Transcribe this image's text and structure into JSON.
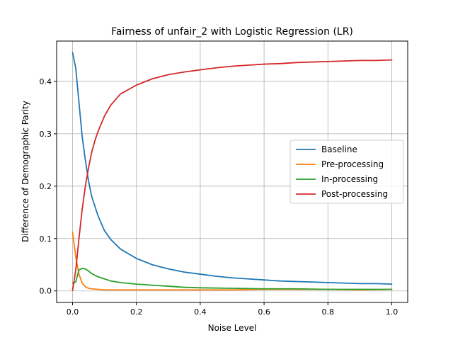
{
  "chart_data": {
    "type": "line",
    "title": "Fairness of unfair_2 with Logistic Regression (LR)",
    "xlabel": "Noise Level",
    "ylabel": "Difference of Demographic Parity",
    "xlim": [
      -0.05,
      1.05
    ],
    "ylim": [
      -0.022,
      0.477
    ],
    "xticks": [
      0.0,
      0.2,
      0.4,
      0.6,
      0.8,
      1.0
    ],
    "xtick_labels": [
      "0.0",
      "0.2",
      "0.4",
      "0.6",
      "0.8",
      "1.0"
    ],
    "yticks": [
      0.0,
      0.1,
      0.2,
      0.3,
      0.4
    ],
    "ytick_labels": [
      "0.0",
      "0.1",
      "0.2",
      "0.3",
      "0.4"
    ],
    "grid": true,
    "legend_position": "center-right",
    "series": [
      {
        "name": "Baseline",
        "color": "#1f77b4",
        "x": [
          0,
          0.01,
          0.02,
          0.03,
          0.04,
          0.05,
          0.06,
          0.08,
          0.1,
          0.12,
          0.15,
          0.2,
          0.25,
          0.3,
          0.35,
          0.4,
          0.45,
          0.5,
          0.55,
          0.6,
          0.65,
          0.7,
          0.75,
          0.8,
          0.85,
          0.9,
          0.95,
          1.0
        ],
        "y": [
          0.455,
          0.425,
          0.36,
          0.295,
          0.25,
          0.21,
          0.18,
          0.143,
          0.115,
          0.098,
          0.08,
          0.062,
          0.05,
          0.042,
          0.036,
          0.032,
          0.028,
          0.025,
          0.023,
          0.021,
          0.019,
          0.018,
          0.017,
          0.016,
          0.015,
          0.014,
          0.014,
          0.013
        ]
      },
      {
        "name": "Pre-processing",
        "color": "#ff7f0e",
        "x": [
          0,
          0.01,
          0.02,
          0.03,
          0.04,
          0.05,
          0.06,
          0.08,
          0.1,
          0.15,
          0.2,
          0.3,
          0.4,
          0.5,
          0.6,
          0.7,
          0.8,
          0.9,
          1.0
        ],
        "y": [
          0.112,
          0.065,
          0.032,
          0.015,
          0.008,
          0.005,
          0.004,
          0.003,
          0.002,
          0.002,
          0.002,
          0.002,
          0.002,
          0.002,
          0.003,
          0.003,
          0.003,
          0.002,
          0.003
        ]
      },
      {
        "name": "In-processing",
        "color": "#2ca02c",
        "x": [
          0,
          0.01,
          0.02,
          0.03,
          0.04,
          0.05,
          0.06,
          0.08,
          0.1,
          0.12,
          0.15,
          0.2,
          0.25,
          0.3,
          0.35,
          0.4,
          0.5,
          0.6,
          0.7,
          0.8,
          0.9,
          1.0
        ],
        "y": [
          0.015,
          0.017,
          0.04,
          0.043,
          0.042,
          0.038,
          0.033,
          0.027,
          0.023,
          0.019,
          0.016,
          0.013,
          0.011,
          0.009,
          0.007,
          0.006,
          0.005,
          0.004,
          0.004,
          0.003,
          0.003,
          0.003
        ]
      },
      {
        "name": "Post-processing",
        "color": "#d62728",
        "x": [
          0,
          0.01,
          0.02,
          0.03,
          0.04,
          0.05,
          0.06,
          0.07,
          0.08,
          0.1,
          0.12,
          0.15,
          0.2,
          0.25,
          0.3,
          0.35,
          0.4,
          0.45,
          0.5,
          0.55,
          0.6,
          0.65,
          0.7,
          0.75,
          0.8,
          0.85,
          0.9,
          0.95,
          1.0
        ],
        "y": [
          0.001,
          0.04,
          0.1,
          0.155,
          0.2,
          0.235,
          0.265,
          0.287,
          0.305,
          0.334,
          0.355,
          0.376,
          0.393,
          0.405,
          0.413,
          0.418,
          0.422,
          0.426,
          0.429,
          0.431,
          0.433,
          0.434,
          0.436,
          0.437,
          0.438,
          0.439,
          0.44,
          0.44,
          0.441
        ]
      }
    ]
  }
}
